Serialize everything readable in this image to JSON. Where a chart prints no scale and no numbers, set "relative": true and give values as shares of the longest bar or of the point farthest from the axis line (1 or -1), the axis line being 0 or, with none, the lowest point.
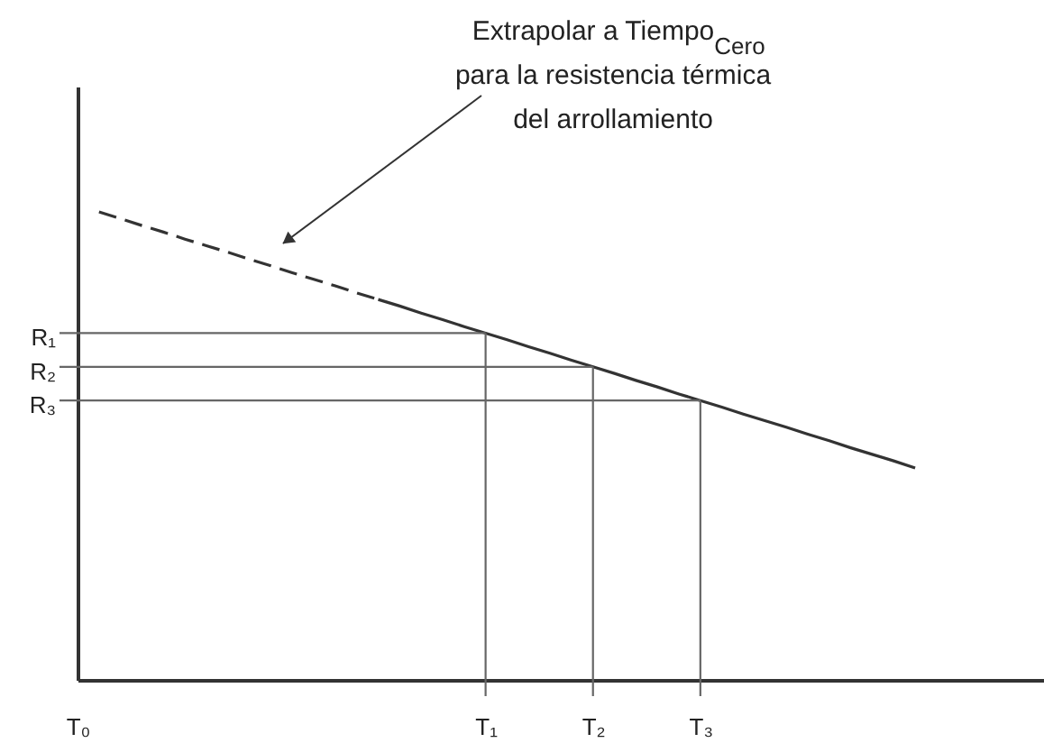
{
  "chart_data": {
    "type": "line",
    "relative": true,
    "categories": [
      "T₀",
      null,
      null,
      null,
      null,
      null,
      null,
      null,
      null,
      null,
      null,
      null,
      null,
      null,
      null,
      null,
      null,
      null,
      null,
      "T₁",
      null,
      null,
      null,
      null,
      "T₂",
      null,
      null,
      null,
      null,
      "T₃",
      null,
      null,
      null,
      null,
      null,
      null,
      null,
      null,
      null,
      null,
      null,
      null,
      null,
      null,
      null,
      null
    ],
    "series": [
      {
        "color": "#333333",
        "line_style": "dashed",
        "values": [
          null,
          1.0,
          0.986,
          0.971,
          0.957,
          0.942,
          0.928,
          0.914,
          0.899,
          0.885,
          0.87,
          0.856,
          0.842,
          0.827,
          0.813,
          null,
          null,
          null,
          null,
          null,
          null,
          null,
          null,
          null,
          null,
          null,
          null,
          null,
          null,
          null,
          null,
          null,
          null,
          null,
          null,
          null,
          null,
          null,
          null,
          null,
          null,
          null,
          null,
          null,
          null,
          null
        ]
      },
      {
        "color": "#333333",
        "line_style": "solid",
        "values": [
          null,
          null,
          null,
          null,
          null,
          null,
          null,
          null,
          null,
          null,
          null,
          null,
          null,
          null,
          0.813,
          0.799,
          0.784,
          0.77,
          0.755,
          0.741,
          0.727,
          0.712,
          0.698,
          0.683,
          0.669,
          0.655,
          0.64,
          0.626,
          0.611,
          0.597,
          0.583,
          0.568,
          0.554,
          0.54,
          0.525,
          0.511,
          0.496,
          0.482,
          0.468,
          0.453,
          null,
          null,
          null,
          null,
          null,
          null
        ]
      }
    ],
    "ref_lines": [
      {
        "axis": "y",
        "value": 0.741,
        "label": "R₁",
        "color": "#666666"
      },
      {
        "axis": "y",
        "value": 0.669,
        "label": "R₂",
        "color": "#666666"
      },
      {
        "axis": "y",
        "value": 0.597,
        "label": "R₃",
        "color": "#666666"
      },
      {
        "axis": "x",
        "value": "T₁",
        "color": "#666666"
      },
      {
        "axis": "x",
        "value": "T₂",
        "color": "#666666"
      },
      {
        "axis": "x",
        "value": "T₃",
        "color": "#666666"
      }
    ],
    "annotations": [
      "Extrapolar a Tiempo$_{Cero}$\npara la resistencia térmica\ndel arrollamiento"
    ]
  }
}
